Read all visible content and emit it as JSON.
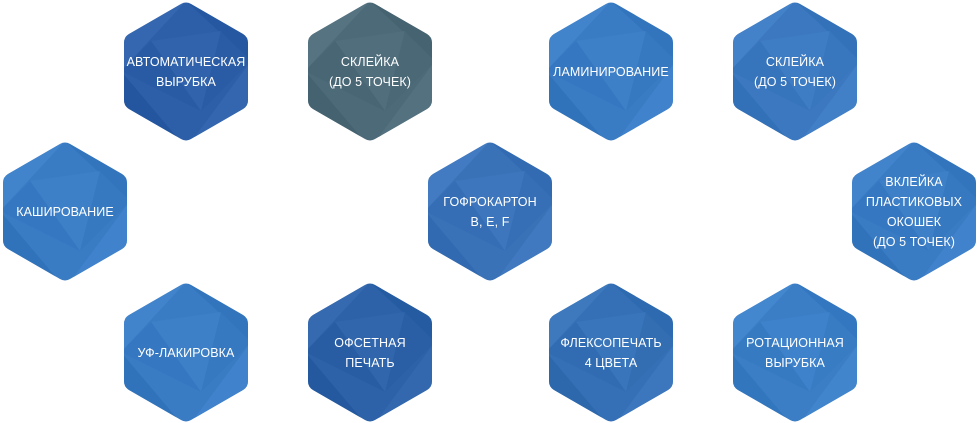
{
  "hexagons": [
    {
      "id": "auto-cutting",
      "lines": [
        "АВТОМАТИЧЕСКАЯ",
        "ВЫРУБКА"
      ],
      "color": "#2d5fa8"
    },
    {
      "id": "gluing-1",
      "lines": [
        "СКЛЕЙКА",
        "(ДО 5 ТОЧЕК)"
      ],
      "color": "#4d6a78"
    },
    {
      "id": "lamination",
      "lines": [
        "ЛАМИНИРОВАНИЕ"
      ],
      "color": "#3a7cc4"
    },
    {
      "id": "gluing-2",
      "lines": [
        "СКЛЕЙКА",
        "(ДО 5 ТОЧЕК)"
      ],
      "color": "#3b78bf"
    },
    {
      "id": "kashirovanie",
      "lines": [
        "КАШИРОВАНИЕ"
      ],
      "color": "#3a7cc4"
    },
    {
      "id": "corrugated",
      "lines": [
        "ГОФРОКАРТОН",
        "B, E, F"
      ],
      "color": "#3a72b8"
    },
    {
      "id": "plastic-windows",
      "lines": [
        "ВКЛЕЙКА",
        "ПЛАСТИКОВЫХ",
        "ОКОШЕК",
        "(ДО 5 ТОЧЕК)"
      ],
      "color": "#3a7cc4"
    },
    {
      "id": "uv-varnish",
      "lines": [
        "УФ-ЛАКИРОВКА"
      ],
      "color": "#3a7cc4"
    },
    {
      "id": "offset",
      "lines": [
        "ОФСЕТНАЯ",
        "ПЕЧАТЬ"
      ],
      "color": "#2d62a8"
    },
    {
      "id": "flexo",
      "lines": [
        "ФЛЕКСОПЕЧАТЬ",
        "4 ЦВЕТА"
      ],
      "color": "#3570b6"
    },
    {
      "id": "rotary-cutting",
      "lines": [
        "РОТАЦИОННАЯ",
        "ВЫРУБКА"
      ],
      "color": "#3b7ec6"
    }
  ]
}
